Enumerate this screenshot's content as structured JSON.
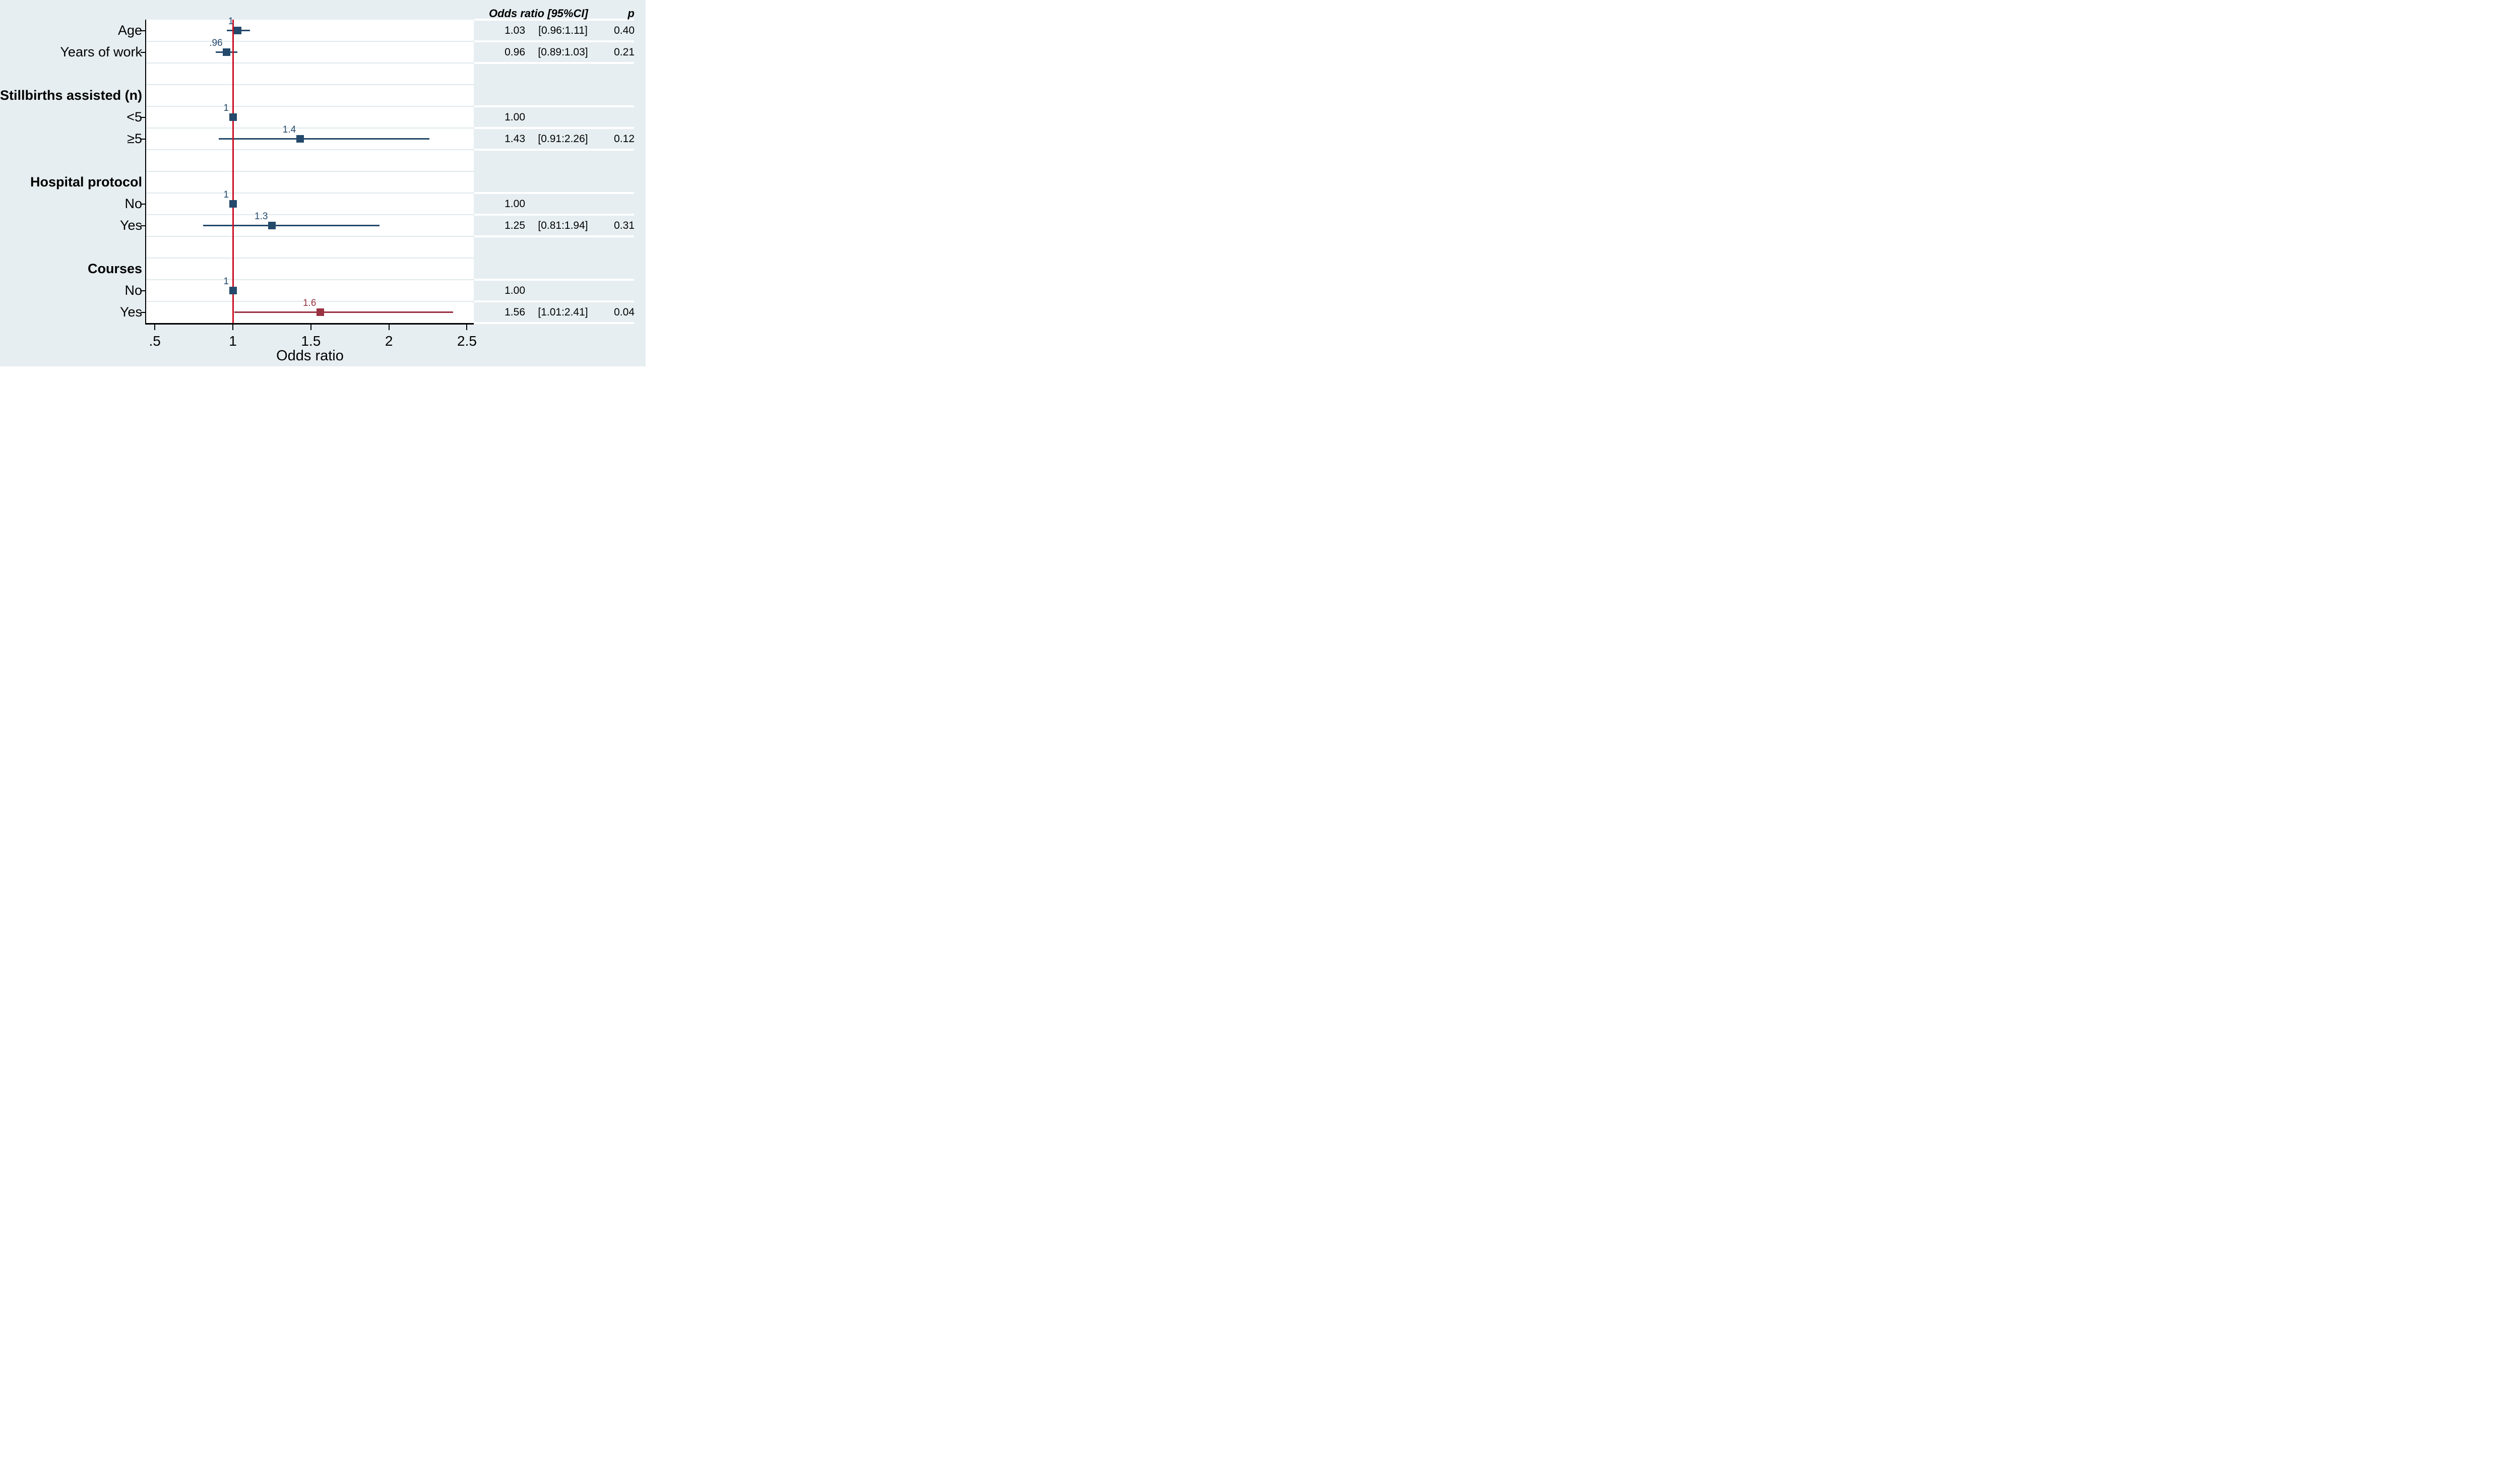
{
  "colors": {
    "page_bg": "#e6eef1",
    "plot_bg": "#ffffff",
    "grid": "#dfe9ec",
    "axis": "#000000",
    "navy": "#24496b",
    "maroon": "#9a3140",
    "ref_line": "#cc1126",
    "stripe": "#ffffff",
    "text": "#000000"
  },
  "table_header": {
    "or_ci": "Odds ratio [95%CI]",
    "p": "p"
  },
  "chart_data": {
    "type": "forest",
    "xlabel": "Odds ratio",
    "xlim": [
      0.44,
      2.55
    ],
    "ref_line": 1,
    "grid": true,
    "x_ticks": [
      {
        "v": 0.5,
        "label": ".5"
      },
      {
        "v": 1.0,
        "label": "1"
      },
      {
        "v": 1.5,
        "label": "1.5"
      },
      {
        "v": 2.0,
        "label": "2"
      },
      {
        "v": 2.5,
        "label": "2.5"
      }
    ],
    "rows": [
      {
        "kind": "item",
        "label": "Age",
        "estimate": 1.03,
        "ci": [
          0.96,
          1.11
        ],
        "point_label": "1",
        "color": "navy",
        "table": {
          "or": "1.03",
          "ci": "[0.96:1.11]",
          "p": "0.40"
        }
      },
      {
        "kind": "item",
        "label": "Years of work",
        "estimate": 0.96,
        "ci": [
          0.89,
          1.03
        ],
        "point_label": ".96",
        "color": "navy",
        "table": {
          "or": "0.96",
          "ci": "[0.89:1.03]",
          "p": "0.21"
        }
      },
      {
        "kind": "blank",
        "label": ""
      },
      {
        "kind": "header",
        "label": "Stillbirths assisted (n)"
      },
      {
        "kind": "item",
        "label": "<5",
        "estimate": 1.0,
        "ci": null,
        "point_label": "1",
        "color": "navy",
        "table": {
          "or": "1.00",
          "ci": "",
          "p": ""
        }
      },
      {
        "kind": "item",
        "label": "≥5",
        "estimate": 1.43,
        "ci": [
          0.91,
          2.26
        ],
        "point_label": "1.4",
        "color": "navy",
        "table": {
          "or": "1.43",
          "ci": "[0.91:2.26]",
          "p": "0.12"
        }
      },
      {
        "kind": "blank",
        "label": ""
      },
      {
        "kind": "header",
        "label": "Hospital protocol"
      },
      {
        "kind": "item",
        "label": "No",
        "estimate": 1.0,
        "ci": null,
        "point_label": "1",
        "color": "navy",
        "table": {
          "or": "1.00",
          "ci": "",
          "p": ""
        }
      },
      {
        "kind": "item",
        "label": "Yes",
        "estimate": 1.25,
        "ci": [
          0.81,
          1.94
        ],
        "point_label": "1.3",
        "color": "navy",
        "table": {
          "or": "1.25",
          "ci": "[0.81:1.94]",
          "p": "0.31"
        }
      },
      {
        "kind": "blank",
        "label": ""
      },
      {
        "kind": "header",
        "label": "Courses"
      },
      {
        "kind": "item",
        "label": "No",
        "estimate": 1.0,
        "ci": null,
        "point_label": "1",
        "color": "navy",
        "table": {
          "or": "1.00",
          "ci": "",
          "p": ""
        }
      },
      {
        "kind": "item",
        "label": "Yes",
        "estimate": 1.56,
        "ci": [
          1.01,
          2.41
        ],
        "point_label": "1.6",
        "color": "maroon",
        "table": {
          "or": "1.56",
          "ci": "[1.01:2.41]",
          "p": "0.04"
        }
      }
    ]
  }
}
